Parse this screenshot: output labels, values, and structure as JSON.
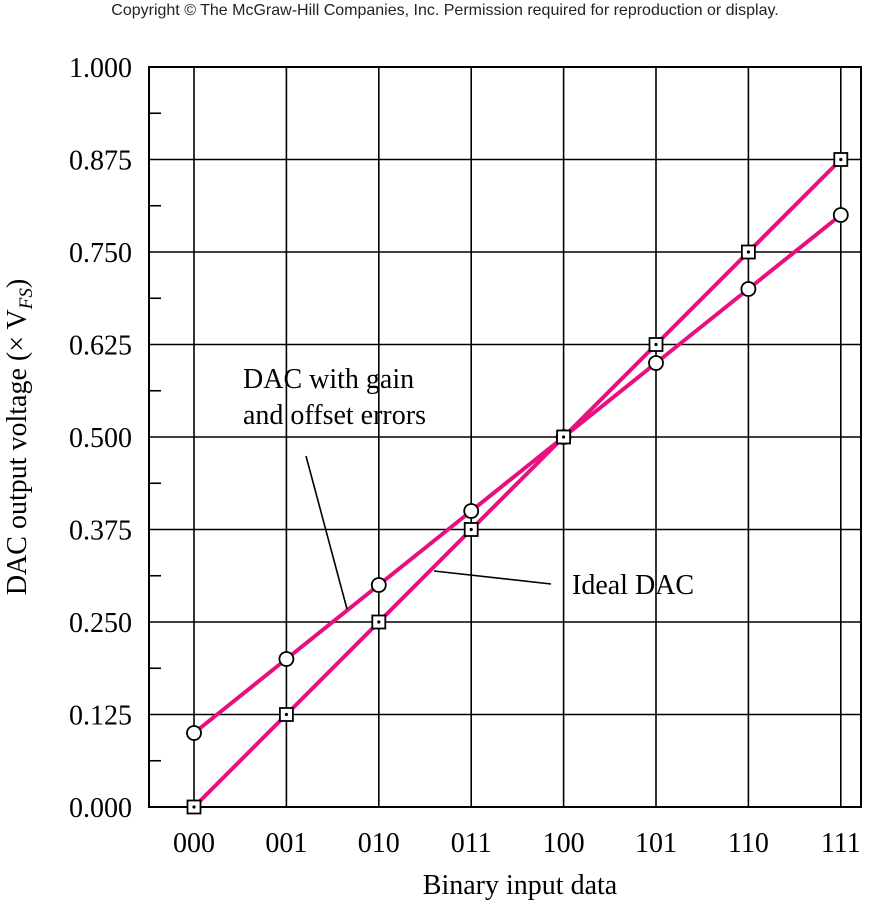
{
  "copyright": "Copyright © The McGraw-Hill Companies, Inc. Permission required for reproduction or display.",
  "chart_data": {
    "type": "line",
    "categories": [
      "000",
      "001",
      "010",
      "011",
      "100",
      "101",
      "110",
      "111"
    ],
    "xlabel": "Binary input data",
    "ylabel_main": "DAC output voltage (× V",
    "ylabel_sub": "FS",
    "ylabel_close": ")",
    "ylim": [
      0,
      1
    ],
    "y_ticks": [
      "0.000",
      "0.125",
      "0.250",
      "0.375",
      "0.500",
      "0.625",
      "0.750",
      "0.875",
      "1.000"
    ],
    "grid": true,
    "line_color": "#e6117f",
    "series": [
      {
        "key": "ideal",
        "values": [
          0.0,
          0.125,
          0.25,
          0.375,
          0.5,
          0.625,
          0.75,
          0.875
        ],
        "marker": "square"
      },
      {
        "key": "errors",
        "values": [
          0.1,
          0.2,
          0.3,
          0.4,
          0.5,
          0.6,
          0.7,
          0.8
        ],
        "marker": "circle"
      }
    ],
    "annotations": {
      "errors_line1": "DAC with gain",
      "errors_line2": "and offset errors",
      "ideal": "Ideal DAC"
    }
  }
}
